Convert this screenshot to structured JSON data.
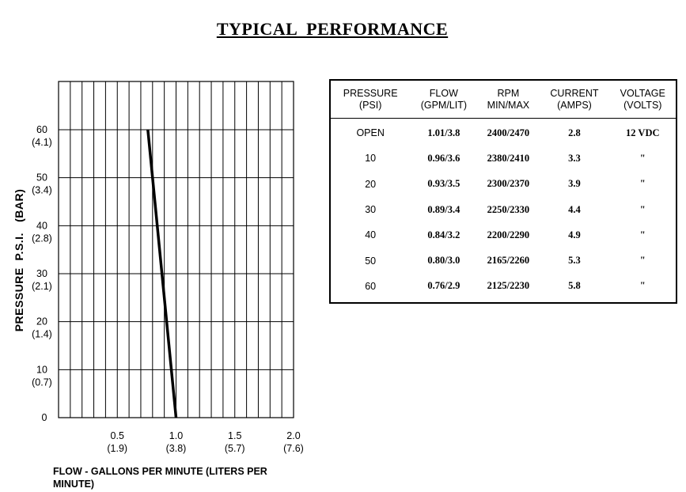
{
  "title": "TYPICAL  PERFORMANCE",
  "chart_data": {
    "type": "line",
    "xlabel": "FLOW - GALLONS PER MINUTE  (LITERS PER MINUTE)",
    "ylabel": "PRESSURE  P.S.I.   (BAR)",
    "xlim": [
      0,
      2.0
    ],
    "ylim": [
      0,
      60
    ],
    "grid": true,
    "x_ticks": [
      {
        "value": 0.5,
        "label": "0.5",
        "sub": "(1.9)"
      },
      {
        "value": 1.0,
        "label": "1.0",
        "sub": "(3.8)"
      },
      {
        "value": 1.5,
        "label": "1.5",
        "sub": "(5.7)"
      },
      {
        "value": 2.0,
        "label": "2.0",
        "sub": "(7.6)"
      }
    ],
    "y_ticks": [
      {
        "value": 60,
        "label": "60",
        "sub": "(4.1)"
      },
      {
        "value": 50,
        "label": "50",
        "sub": "(3.4)"
      },
      {
        "value": 40,
        "label": "40",
        "sub": "(2.8)"
      },
      {
        "value": 30,
        "label": "30",
        "sub": "(2.1)"
      },
      {
        "value": 20,
        "label": "20",
        "sub": "(1.4)"
      },
      {
        "value": 10,
        "label": "10",
        "sub": "(0.7)"
      },
      {
        "value": 0,
        "label": "0",
        "sub": ""
      }
    ],
    "series": [
      {
        "x": [
          1.0,
          0.76
        ],
        "y": [
          0,
          60
        ]
      }
    ]
  },
  "table": {
    "headers": [
      {
        "line1": "PRESSURE",
        "line2": "(PSI)"
      },
      {
        "line1": "FLOW",
        "line2": "(GPM/LIT)"
      },
      {
        "line1": "RPM",
        "line2": "MIN/MAX"
      },
      {
        "line1": "CURRENT",
        "line2": "(AMPS)"
      },
      {
        "line1": "VOLTAGE",
        "line2": "(VOLTS)"
      }
    ],
    "rows": [
      [
        "OPEN",
        "1.01/3.8",
        "2400/2470",
        "2.8",
        "12 VDC"
      ],
      [
        "10",
        "0.96/3.6",
        "2380/2410",
        "3.3",
        "\""
      ],
      [
        "20",
        "0.93/3.5",
        "2300/2370",
        "3.9",
        "\""
      ],
      [
        "30",
        "0.89/3.4",
        "2250/2330",
        "4.4",
        "\""
      ],
      [
        "40",
        "0.84/3.2",
        "2200/2290",
        "4.9",
        "\""
      ],
      [
        "50",
        "0.80/3.0",
        "2165/2260",
        "5.3",
        "\""
      ],
      [
        "60",
        "0.76/2.9",
        "2125/2230",
        "5.8",
        "\""
      ]
    ]
  }
}
